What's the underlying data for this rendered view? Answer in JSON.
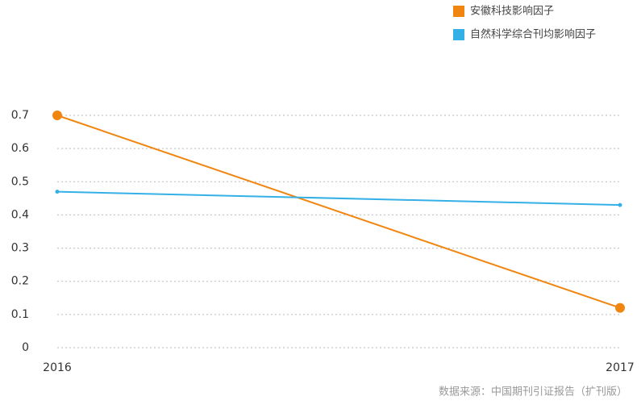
{
  "chart_data": {
    "type": "line",
    "categories": [
      "2016",
      "2017"
    ],
    "series": [
      {
        "name": "安徽科技影响因子",
        "color": "#f0860f",
        "values": [
          0.7,
          0.12
        ]
      },
      {
        "name": "自然科学综合刊均影响因子",
        "color": "#35b0e6",
        "values": [
          0.47,
          0.43
        ]
      }
    ],
    "ylim": [
      0,
      0.7
    ],
    "yticks": [
      0,
      0.1,
      0.2,
      0.3,
      0.4,
      0.5,
      0.6,
      0.7
    ],
    "grid": true,
    "legend": "top-right",
    "source": "数据来源：中国期刊引证报告（扩刊版）"
  }
}
